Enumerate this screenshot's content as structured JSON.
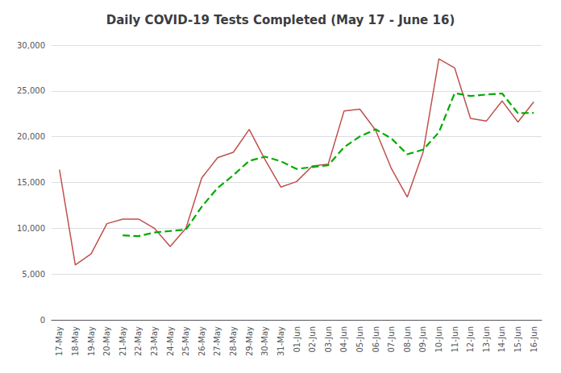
{
  "chart_data": {
    "type": "line",
    "title": "Daily COVID-19 Tests Completed (May 17 - June 16)",
    "categories": [
      "17-May",
      "18-May",
      "19-May",
      "20-May",
      "21-May",
      "22-May",
      "23-May",
      "24-May",
      "25-May",
      "26-May",
      "27-May",
      "28-May",
      "29-May",
      "30-May",
      "31-May",
      "01-Jun",
      "02-Jun",
      "03-Jun",
      "04-Jun",
      "05-Jun",
      "06-Jun",
      "07-Jun",
      "08-Jun",
      "09-Jun",
      "10-Jun",
      "11-Jun",
      "12-Jun",
      "13-Jun",
      "14-Jun",
      "15-Jun",
      "16-Jun"
    ],
    "series": [
      {
        "color": "#C0504D",
        "line_style": "solid",
        "values": [
          16400,
          6000,
          7200,
          10500,
          11000,
          11000,
          10000,
          8000,
          10000,
          15500,
          17700,
          18300,
          20800,
          17500,
          14500,
          15100,
          16800,
          17000,
          22800,
          23000,
          20700,
          16500,
          13400,
          18300,
          28500,
          27500,
          22000,
          21700,
          23900,
          21600,
          23800
        ]
      },
      {
        "color": "#00AA00",
        "line_style": "dashed",
        "values": [
          null,
          null,
          null,
          null,
          9220,
          9140,
          9540,
          9700,
          9860,
          12360,
          14400,
          15800,
          17360,
          17820,
          17320,
          16480,
          16680,
          16880,
          18840,
          20020,
          20800,
          19800,
          18080,
          18580,
          20480,
          24760,
          24440,
          24600,
          24720,
          22560,
          22600
        ]
      }
    ],
    "ylim": [
      0,
      30000
    ],
    "yticks": [
      0,
      {
        "value": 5000,
        "label": "5,000"
      },
      {
        "value": 10000,
        "label": "10,000"
      },
      {
        "value": 15000,
        "label": "15,000"
      },
      {
        "value": 20000,
        "label": "20,000"
      },
      {
        "value": 25000,
        "label": "25,000"
      },
      {
        "value": 30000,
        "label": "30,000"
      }
    ],
    "grid": true
  }
}
